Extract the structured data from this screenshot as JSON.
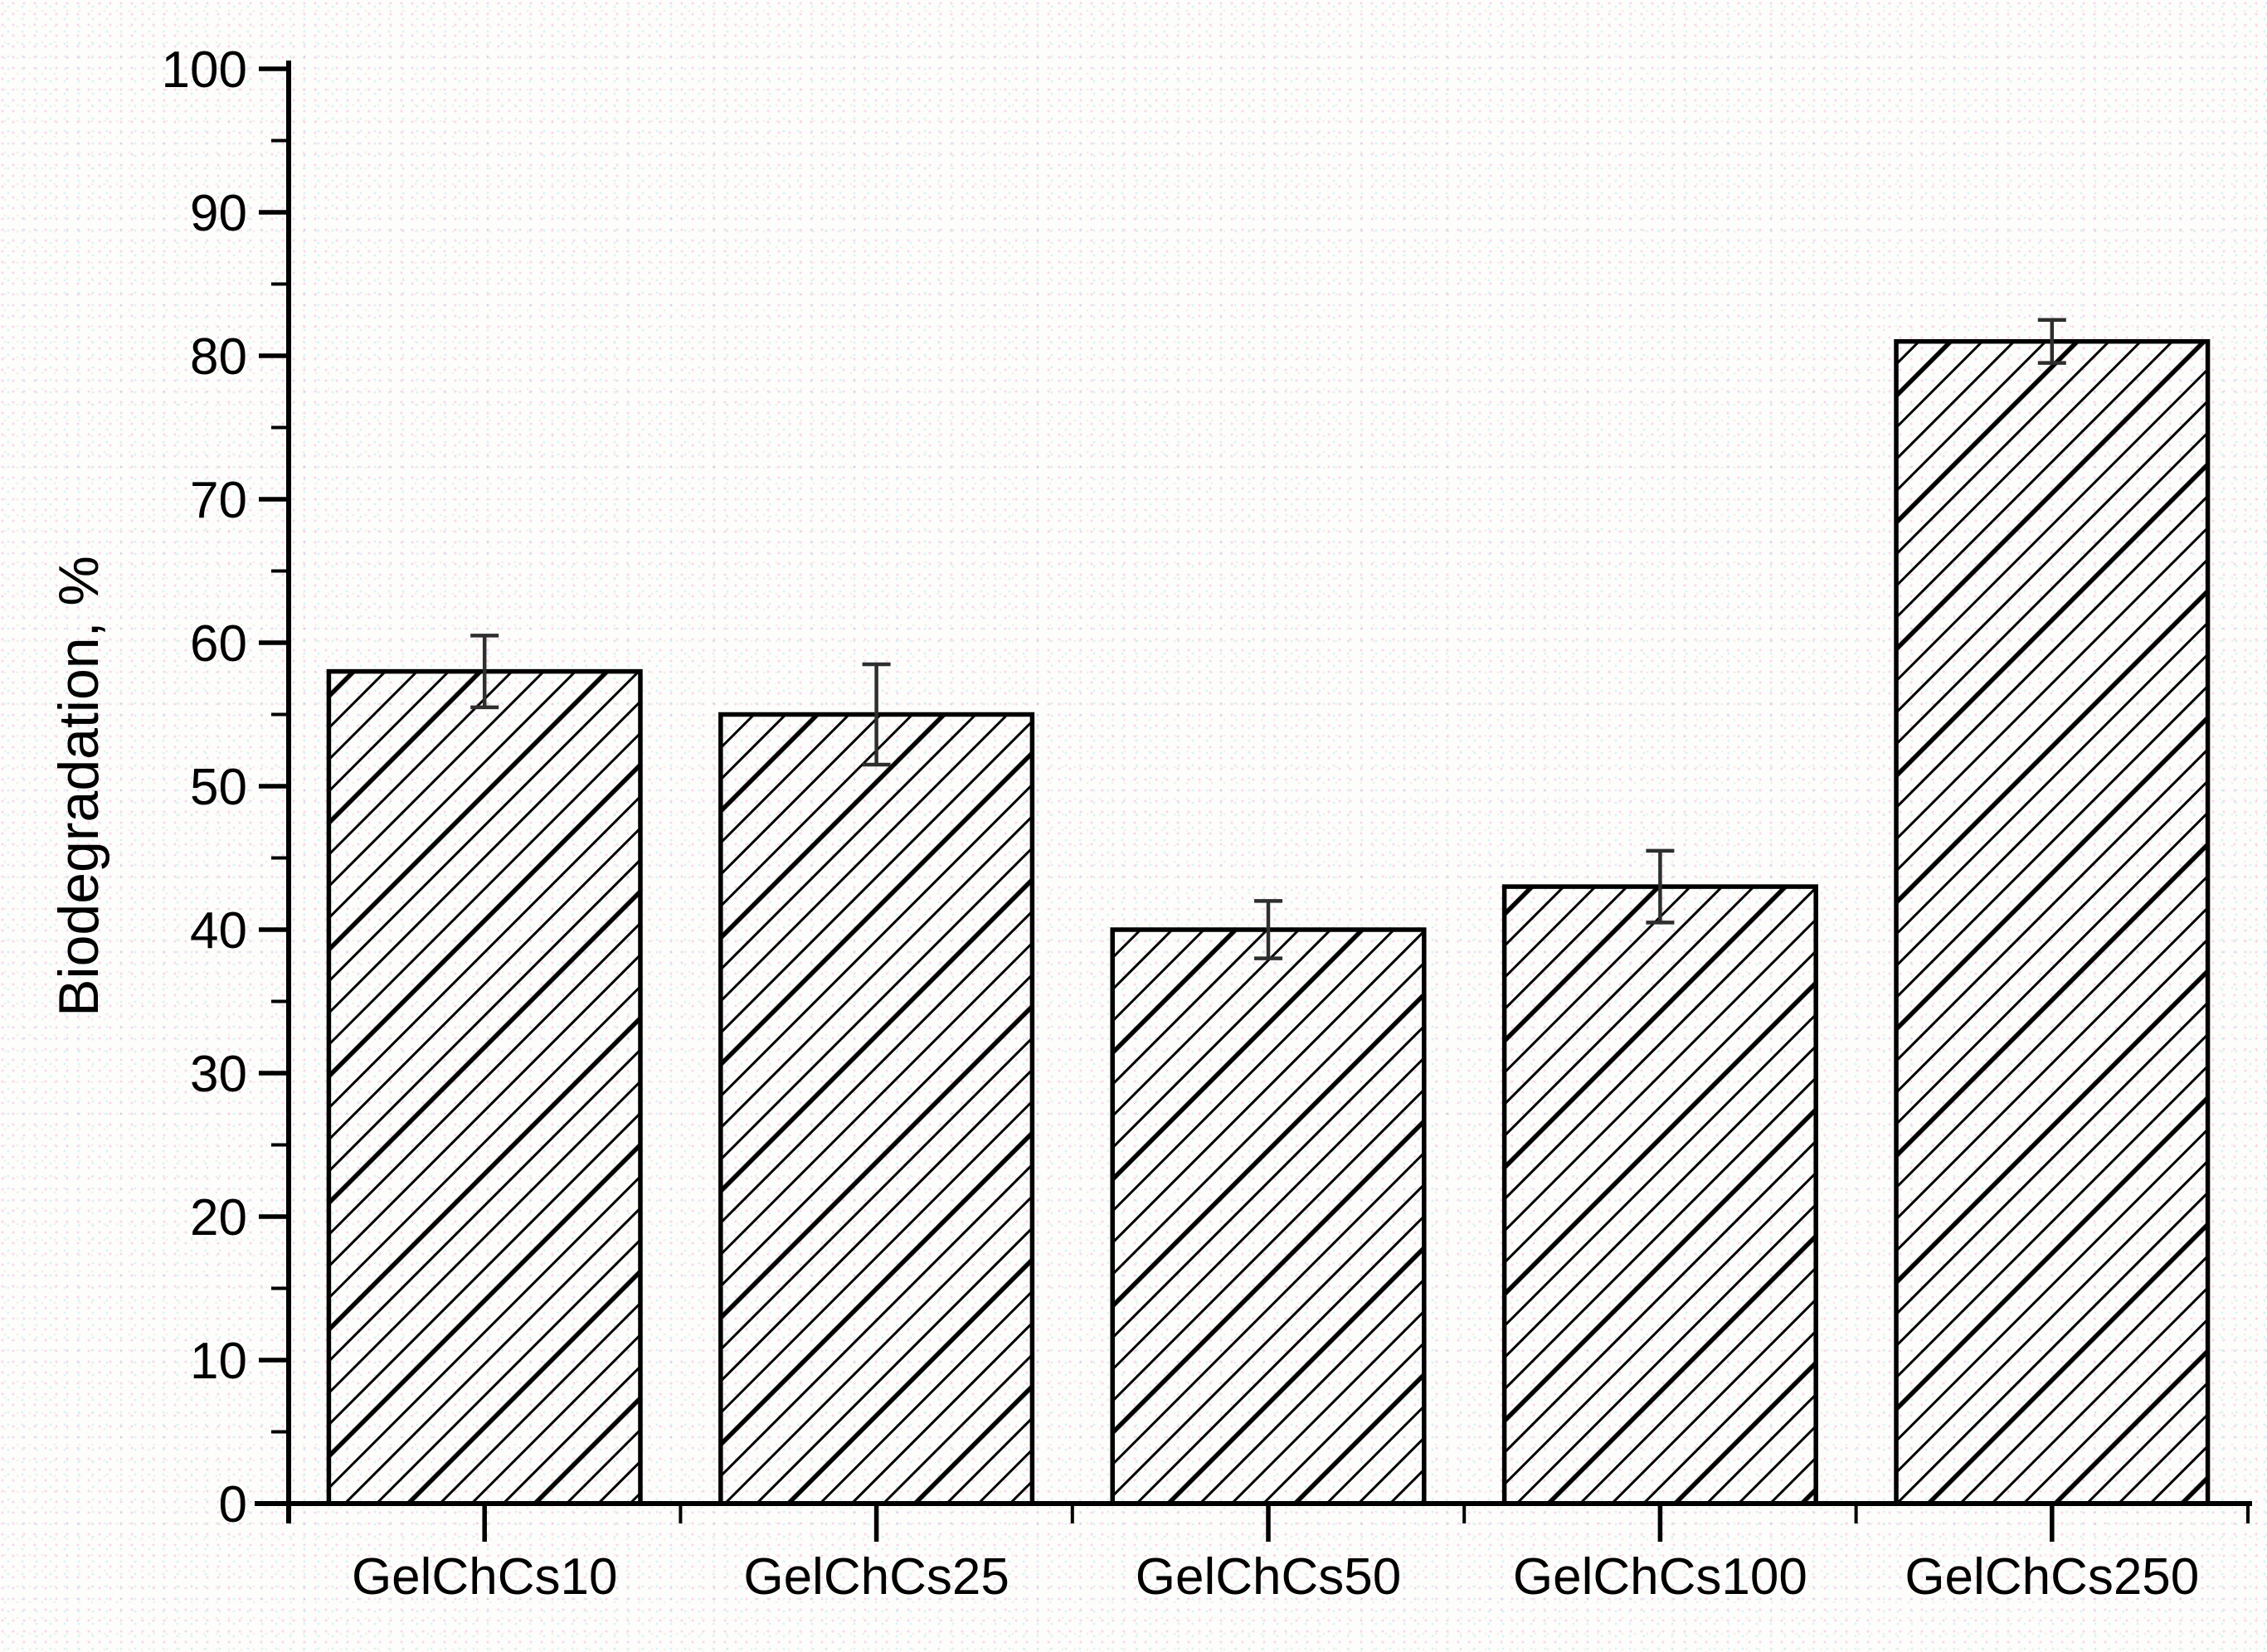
{
  "figure": {
    "background_color": "#fdfdfb",
    "ink_color": "#000000",
    "error_bar_color": "#2e2e2e"
  },
  "chart_data": {
    "type": "bar",
    "title": "",
    "xlabel": "",
    "ylabel": "Biodegradation, %",
    "categories": [
      "GelChCs10",
      "GelChCs25",
      "GelChCs50",
      "GelChCs100",
      "GelChCs250"
    ],
    "values": [
      58,
      55,
      40,
      43,
      81
    ],
    "error_bars_plus_minus": [
      2.5,
      3.5,
      2,
      2.5,
      1.5
    ],
    "ylim": [
      0,
      100
    ],
    "y_major_tick_step": 10,
    "y_minor_tick_step": 5,
    "y_tick_labels": [
      "0",
      "10",
      "20",
      "30",
      "40",
      "50",
      "60",
      "70",
      "80",
      "90",
      "100"
    ],
    "x_tick_labels": [
      "GelChCs10",
      "GelChCs25",
      "GelChCs50",
      "GelChCs100",
      "GelChCs250"
    ],
    "grid": false,
    "legend": null,
    "bar_fill": "none",
    "bar_hatch": "forward-diagonal-lines",
    "bar_edge_color": "#000000"
  }
}
